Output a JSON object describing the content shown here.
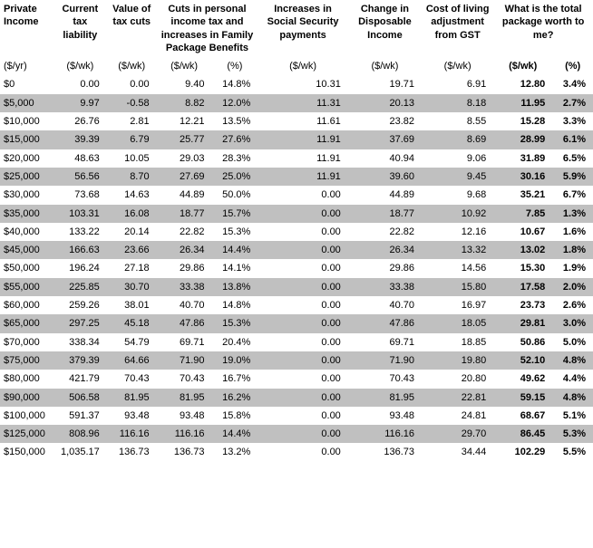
{
  "headers": {
    "income": "Private Income",
    "liability": "Current tax liability",
    "valuecuts": "Value of tax cuts",
    "cuts": "Cuts in personal income tax and increases in Family Package Benefits",
    "ss": "Increases in Social Security payments",
    "disp": "Change in Disposable Income",
    "col": "Cost of living adjustment from GST",
    "total": "What is the total package worth to me?"
  },
  "units": {
    "income": "($/yr)",
    "liability": "($/wk)",
    "valuecuts": "($/wk)",
    "cutswk": "($/wk)",
    "cutspct": "(%)",
    "ss": "($/wk)",
    "disp": "($/wk)",
    "col": "($/wk)",
    "totwk": "($/wk)",
    "totpct": "(%)"
  },
  "rows": [
    {
      "income": "$0",
      "liability": "0.00",
      "valuecuts": "0.00",
      "cutswk": "9.40",
      "cutspct": "14.8%",
      "ss": "10.31",
      "disp": "19.71",
      "col": "6.91",
      "totwk": "12.80",
      "totpct": "3.4%"
    },
    {
      "income": "$5,000",
      "liability": "9.97",
      "valuecuts": "-0.58",
      "cutswk": "8.82",
      "cutspct": "12.0%",
      "ss": "11.31",
      "disp": "20.13",
      "col": "8.18",
      "totwk": "11.95",
      "totpct": "2.7%"
    },
    {
      "income": "$10,000",
      "liability": "26.76",
      "valuecuts": "2.81",
      "cutswk": "12.21",
      "cutspct": "13.5%",
      "ss": "11.61",
      "disp": "23.82",
      "col": "8.55",
      "totwk": "15.28",
      "totpct": "3.3%"
    },
    {
      "income": "$15,000",
      "liability": "39.39",
      "valuecuts": "6.79",
      "cutswk": "25.77",
      "cutspct": "27.6%",
      "ss": "11.91",
      "disp": "37.69",
      "col": "8.69",
      "totwk": "28.99",
      "totpct": "6.1%"
    },
    {
      "income": "$20,000",
      "liability": "48.63",
      "valuecuts": "10.05",
      "cutswk": "29.03",
      "cutspct": "28.3%",
      "ss": "11.91",
      "disp": "40.94",
      "col": "9.06",
      "totwk": "31.89",
      "totpct": "6.5%"
    },
    {
      "income": "$25,000",
      "liability": "56.56",
      "valuecuts": "8.70",
      "cutswk": "27.69",
      "cutspct": "25.0%",
      "ss": "11.91",
      "disp": "39.60",
      "col": "9.45",
      "totwk": "30.16",
      "totpct": "5.9%"
    },
    {
      "income": "$30,000",
      "liability": "73.68",
      "valuecuts": "14.63",
      "cutswk": "44.89",
      "cutspct": "50.0%",
      "ss": "0.00",
      "disp": "44.89",
      "col": "9.68",
      "totwk": "35.21",
      "totpct": "6.7%"
    },
    {
      "income": "$35,000",
      "liability": "103.31",
      "valuecuts": "16.08",
      "cutswk": "18.77",
      "cutspct": "15.7%",
      "ss": "0.00",
      "disp": "18.77",
      "col": "10.92",
      "totwk": "7.85",
      "totpct": "1.3%"
    },
    {
      "income": "$40,000",
      "liability": "133.22",
      "valuecuts": "20.14",
      "cutswk": "22.82",
      "cutspct": "15.3%",
      "ss": "0.00",
      "disp": "22.82",
      "col": "12.16",
      "totwk": "10.67",
      "totpct": "1.6%"
    },
    {
      "income": "$45,000",
      "liability": "166.63",
      "valuecuts": "23.66",
      "cutswk": "26.34",
      "cutspct": "14.4%",
      "ss": "0.00",
      "disp": "26.34",
      "col": "13.32",
      "totwk": "13.02",
      "totpct": "1.8%"
    },
    {
      "income": "$50,000",
      "liability": "196.24",
      "valuecuts": "27.18",
      "cutswk": "29.86",
      "cutspct": "14.1%",
      "ss": "0.00",
      "disp": "29.86",
      "col": "14.56",
      "totwk": "15.30",
      "totpct": "1.9%"
    },
    {
      "income": "$55,000",
      "liability": "225.85",
      "valuecuts": "30.70",
      "cutswk": "33.38",
      "cutspct": "13.8%",
      "ss": "0.00",
      "disp": "33.38",
      "col": "15.80",
      "totwk": "17.58",
      "totpct": "2.0%"
    },
    {
      "income": "$60,000",
      "liability": "259.26",
      "valuecuts": "38.01",
      "cutswk": "40.70",
      "cutspct": "14.8%",
      "ss": "0.00",
      "disp": "40.70",
      "col": "16.97",
      "totwk": "23.73",
      "totpct": "2.6%"
    },
    {
      "income": "$65,000",
      "liability": "297.25",
      "valuecuts": "45.18",
      "cutswk": "47.86",
      "cutspct": "15.3%",
      "ss": "0.00",
      "disp": "47.86",
      "col": "18.05",
      "totwk": "29.81",
      "totpct": "3.0%"
    },
    {
      "income": "$70,000",
      "liability": "338.34",
      "valuecuts": "54.79",
      "cutswk": "69.71",
      "cutspct": "20.4%",
      "ss": "0.00",
      "disp": "69.71",
      "col": "18.85",
      "totwk": "50.86",
      "totpct": "5.0%"
    },
    {
      "income": "$75,000",
      "liability": "379.39",
      "valuecuts": "64.66",
      "cutswk": "71.90",
      "cutspct": "19.0%",
      "ss": "0.00",
      "disp": "71.90",
      "col": "19.80",
      "totwk": "52.10",
      "totpct": "4.8%"
    },
    {
      "income": "$80,000",
      "liability": "421.79",
      "valuecuts": "70.43",
      "cutswk": "70.43",
      "cutspct": "16.7%",
      "ss": "0.00",
      "disp": "70.43",
      "col": "20.80",
      "totwk": "49.62",
      "totpct": "4.4%"
    },
    {
      "income": "$90,000",
      "liability": "506.58",
      "valuecuts": "81.95",
      "cutswk": "81.95",
      "cutspct": "16.2%",
      "ss": "0.00",
      "disp": "81.95",
      "col": "22.81",
      "totwk": "59.15",
      "totpct": "4.8%"
    },
    {
      "income": "$100,000",
      "liability": "591.37",
      "valuecuts": "93.48",
      "cutswk": "93.48",
      "cutspct": "15.8%",
      "ss": "0.00",
      "disp": "93.48",
      "col": "24.81",
      "totwk": "68.67",
      "totpct": "5.1%"
    },
    {
      "income": "$125,000",
      "liability": "808.96",
      "valuecuts": "116.16",
      "cutswk": "116.16",
      "cutspct": "14.4%",
      "ss": "0.00",
      "disp": "116.16",
      "col": "29.70",
      "totwk": "86.45",
      "totpct": "5.3%"
    },
    {
      "income": "$150,000",
      "liability": "1,035.17",
      "valuecuts": "136.73",
      "cutswk": "136.73",
      "cutspct": "13.2%",
      "ss": "0.00",
      "disp": "136.73",
      "col": "34.44",
      "totwk": "102.29",
      "totpct": "5.5%"
    }
  ],
  "colors": {
    "row_alt": "#c0c0c0",
    "row_base": "#ffffff"
  }
}
